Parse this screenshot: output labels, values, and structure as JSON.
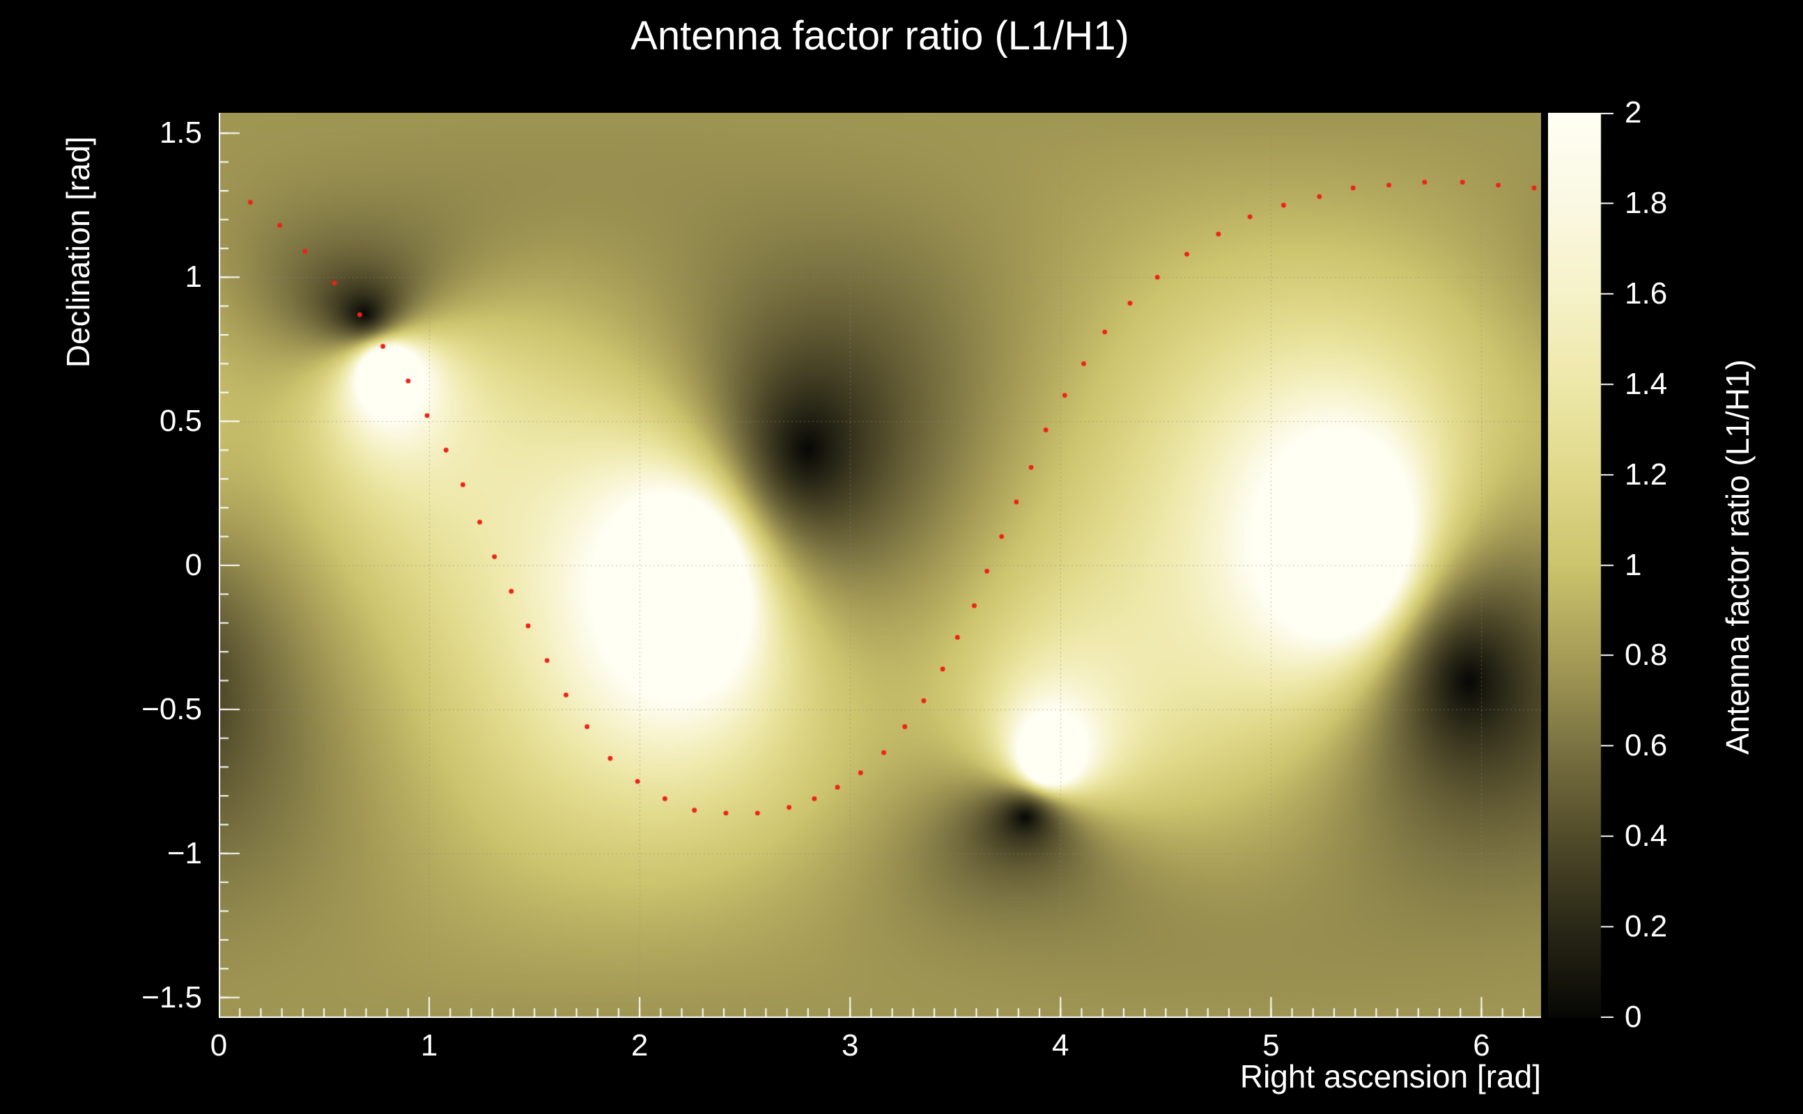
{
  "window": {
    "background": "#000000"
  },
  "title": "Antenna factor ratio (L1/H1)",
  "x_axis": {
    "label": "Right ascension [rad]",
    "ticks": [
      "0",
      "1",
      "2",
      "3",
      "4",
      "5",
      "6"
    ],
    "tick_values": [
      0,
      1,
      2,
      3,
      4,
      5,
      6
    ],
    "minor_tick_step": 0.1
  },
  "y_axis": {
    "label": "Declination [rad]",
    "ticks": [
      "1.5",
      "1",
      "0.5",
      "0",
      "−0.5",
      "−1",
      "−1.5"
    ],
    "tick_values": [
      1.5,
      1,
      0.5,
      0,
      -0.5,
      -1,
      -1.5
    ],
    "minor_tick_step": 0.1
  },
  "colorbar": {
    "label": "Antenna factor ratio (L1/H1)",
    "ticks": [
      "0",
      "0.2",
      "0.4",
      "0.6",
      "0.8",
      "1",
      "1.2",
      "1.4",
      "1.6",
      "1.8",
      "2"
    ],
    "tick_values": [
      0,
      0.2,
      0.4,
      0.6,
      0.8,
      1,
      1.2,
      1.4,
      1.6,
      1.8,
      2
    ]
  },
  "grid": {
    "color": "#888888",
    "style": "dotted"
  },
  "chart_data": {
    "type": "heatmap",
    "title": "Antenna factor ratio (L1/H1)",
    "xlabel": "Right ascension [rad]",
    "ylabel": "Declination [rad]",
    "zlabel": "Antenna factor ratio (L1/H1)",
    "xlim": [
      0,
      6.2832
    ],
    "ylim": [
      -1.5708,
      1.5708
    ],
    "zlim": [
      0,
      2
    ],
    "baseline_ratio": 1.0,
    "l1_null_directions": [
      [
        0.69,
        0.875
      ],
      [
        2.8,
        0.405
      ]
    ],
    "h1_null_directions": [
      [
        0.79,
        0.69
      ],
      [
        2.26,
        -0.04
      ]
    ],
    "dark_minima": [
      [
        0.69,
        0.875
      ],
      [
        2.8,
        0.405
      ],
      [
        3.83,
        -0.875
      ],
      [
        5.94,
        -0.405
      ]
    ],
    "bright_maxima": [
      [
        0.79,
        0.69
      ],
      [
        2.26,
        -0.04
      ],
      [
        3.93,
        -0.69
      ],
      [
        5.4,
        0.04
      ]
    ],
    "colormap": {
      "stops": [
        [
          0.0,
          "#070705"
        ],
        [
          0.2,
          "#2a2817"
        ],
        [
          0.4,
          "#524c2b"
        ],
        [
          0.6,
          "#7b7342"
        ],
        [
          0.8,
          "#a79d57"
        ],
        [
          1.0,
          "#cdc46e"
        ],
        [
          1.2,
          "#e0d98a"
        ],
        [
          1.4,
          "#eee8aa"
        ],
        [
          1.6,
          "#f6f2c9"
        ],
        [
          1.8,
          "#fbf9e3"
        ],
        [
          2.0,
          "#fffff4"
        ]
      ]
    },
    "overlay_track": {
      "marker": "dot",
      "color": "#ee2116",
      "points": [
        [
          0.15,
          1.26
        ],
        [
          0.29,
          1.18
        ],
        [
          0.41,
          1.09
        ],
        [
          0.55,
          0.98
        ],
        [
          0.67,
          0.87
        ],
        [
          0.78,
          0.76
        ],
        [
          0.9,
          0.64
        ],
        [
          0.99,
          0.52
        ],
        [
          1.08,
          0.4
        ],
        [
          1.16,
          0.28
        ],
        [
          1.24,
          0.15
        ],
        [
          1.31,
          0.03
        ],
        [
          1.39,
          -0.09
        ],
        [
          1.47,
          -0.21
        ],
        [
          1.56,
          -0.33
        ],
        [
          1.65,
          -0.45
        ],
        [
          1.75,
          -0.56
        ],
        [
          1.86,
          -0.67
        ],
        [
          1.99,
          -0.75
        ],
        [
          2.12,
          -0.81
        ],
        [
          2.26,
          -0.85
        ],
        [
          2.41,
          -0.86
        ],
        [
          2.56,
          -0.86
        ],
        [
          2.71,
          -0.84
        ],
        [
          2.83,
          -0.81
        ],
        [
          2.94,
          -0.77
        ],
        [
          3.05,
          -0.72
        ],
        [
          3.16,
          -0.65
        ],
        [
          3.26,
          -0.56
        ],
        [
          3.35,
          -0.47
        ],
        [
          3.44,
          -0.36
        ],
        [
          3.51,
          -0.25
        ],
        [
          3.59,
          -0.14
        ],
        [
          3.65,
          -0.02
        ],
        [
          3.72,
          0.1
        ],
        [
          3.79,
          0.22
        ],
        [
          3.86,
          0.34
        ],
        [
          3.93,
          0.47
        ],
        [
          4.02,
          0.59
        ],
        [
          4.11,
          0.7
        ],
        [
          4.21,
          0.81
        ],
        [
          4.33,
          0.91
        ],
        [
          4.46,
          1.0
        ],
        [
          4.6,
          1.08
        ],
        [
          4.75,
          1.15
        ],
        [
          4.9,
          1.21
        ],
        [
          5.06,
          1.25
        ],
        [
          5.23,
          1.28
        ],
        [
          5.39,
          1.31
        ],
        [
          5.56,
          1.32
        ],
        [
          5.73,
          1.33
        ],
        [
          5.91,
          1.33
        ],
        [
          6.08,
          1.32
        ],
        [
          6.25,
          1.31
        ]
      ]
    }
  }
}
